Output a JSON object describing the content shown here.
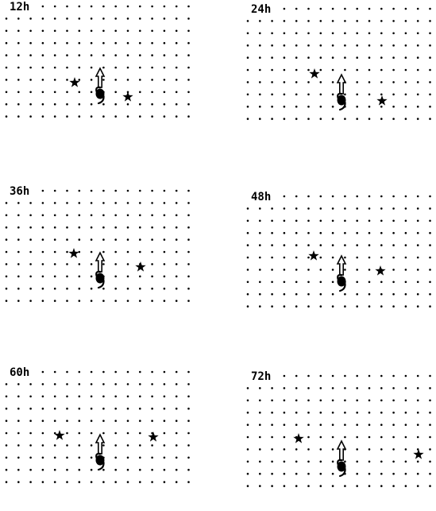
{
  "figure": {
    "panels": [
      {
        "label": "12h"
      },
      {
        "label": "24h"
      },
      {
        "label": "36h"
      },
      {
        "label": "48h"
      },
      {
        "label": "60h"
      },
      {
        "label": "72h"
      }
    ]
  }
}
